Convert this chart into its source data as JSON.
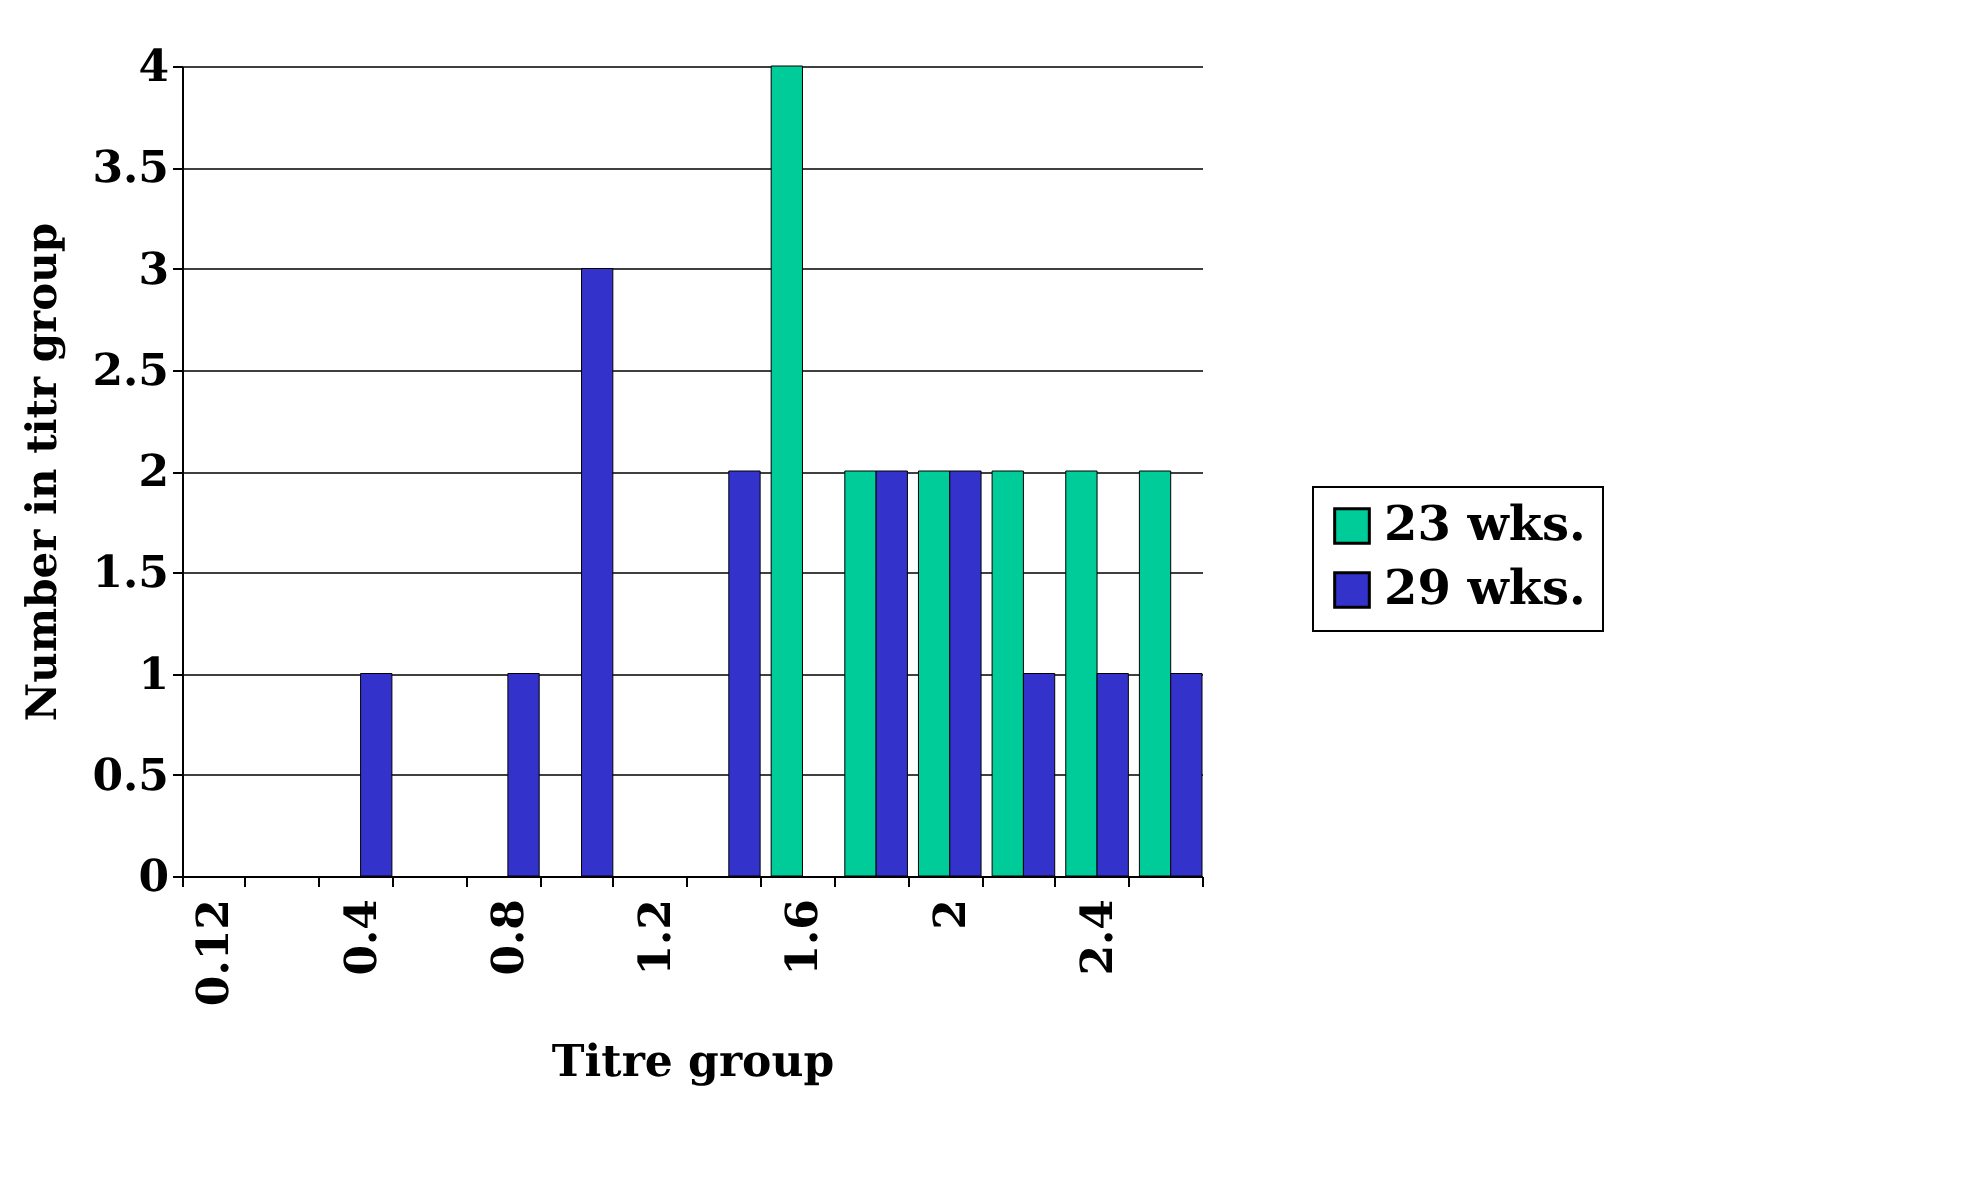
{
  "chart_data": {
    "type": "bar",
    "xlabel": "Titre group",
    "ylabel": "Number in titr group",
    "categories": [
      "0.12",
      null,
      "0.4",
      null,
      "0.8",
      null,
      "1.2",
      null,
      "1.6",
      null,
      "2",
      null,
      "2.4",
      null
    ],
    "series": [
      {
        "name": "23 wks.",
        "color": "#00cc99",
        "values": [
          null,
          null,
          null,
          null,
          null,
          null,
          null,
          null,
          4,
          2,
          2,
          2,
          2,
          2
        ]
      },
      {
        "name": "29 wks.",
        "color": "#3333cc",
        "values": [
          null,
          null,
          1,
          null,
          1,
          3,
          null,
          2,
          null,
          2,
          2,
          1,
          1,
          1
        ]
      }
    ],
    "ylim": [
      0,
      4
    ],
    "yticks": [
      0,
      0.5,
      1,
      1.5,
      2,
      2.5,
      3,
      3.5,
      4
    ],
    "grid": "y",
    "legend": "right"
  }
}
